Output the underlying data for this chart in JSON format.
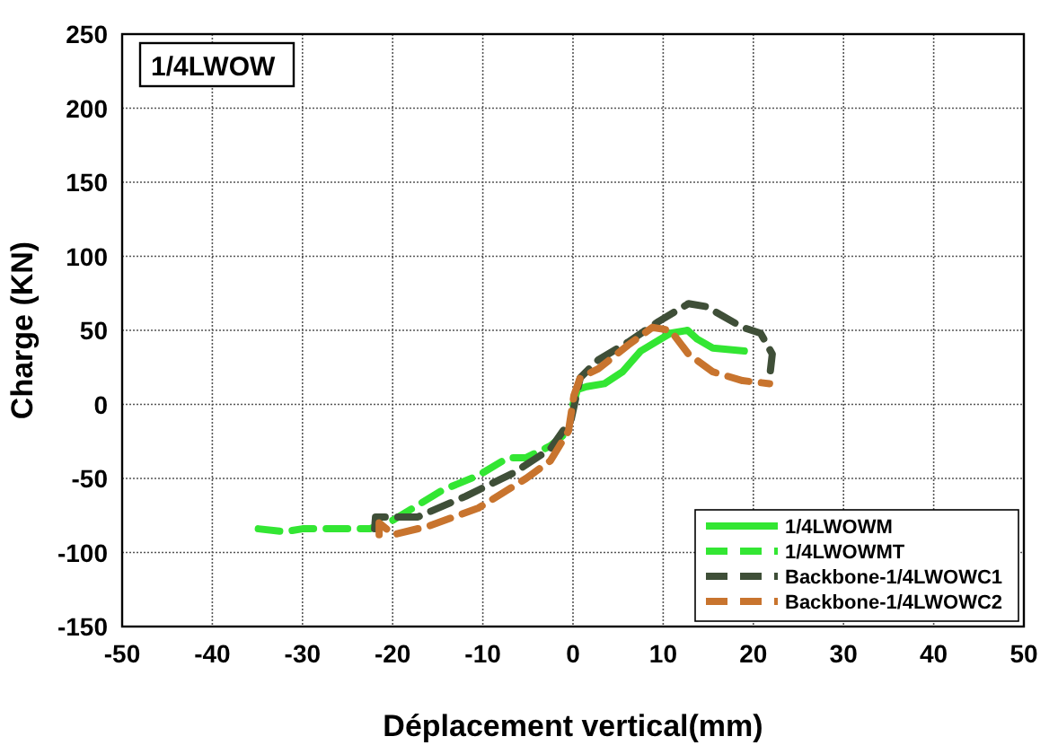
{
  "chart_data": {
    "type": "line",
    "xlabel": "Déplacement vertical(mm)",
    "ylabel": "Charge (KN)",
    "annotations": [
      "1/4LWOW"
    ],
    "xlim": [
      -50,
      50
    ],
    "xticks": [
      -50,
      -40,
      -30,
      -20,
      -10,
      0,
      10,
      20,
      30,
      40,
      50
    ],
    "ylim": [
      -150,
      250
    ],
    "yticks": [
      -150,
      -100,
      -50,
      0,
      50,
      100,
      150,
      200,
      250
    ],
    "grid": true,
    "legend": "bottom right",
    "series": [
      {
        "name": "1/4LWOWM",
        "color": "#33e633",
        "line_style": "solid",
        "x": [
          0,
          0.5,
          1.5,
          3.5,
          5.5,
          7.5,
          10.8,
          12.7,
          13.8,
          15.5,
          19
        ],
        "values": [
          0,
          10,
          12,
          14,
          22,
          36,
          48,
          50,
          44,
          38,
          36
        ]
      },
      {
        "name": "1/4LWOWMT",
        "color": "#33e633",
        "line_style": "dashed",
        "x": [
          -34.9,
          -32,
          -30,
          -22.5,
          -19.9,
          -14.5,
          -10.5,
          -7.2,
          -5.2,
          -2.5,
          -0.5
        ],
        "values": [
          -84,
          -86,
          -84,
          -84,
          -78,
          -58,
          -48,
          -36,
          -36,
          -28,
          -18
        ]
      },
      {
        "name": "Backbone-1/4LWOWC1",
        "color": "#3f4f38",
        "line_style": "dashed",
        "x": [
          -22,
          -21.9,
          -17.2,
          -11.9,
          -6.5,
          -2.5,
          -0.2,
          0.8,
          2.8,
          6.1,
          9.5,
          12.8,
          14.8,
          18.8,
          20.8,
          22.1,
          21.8
        ],
        "values": [
          -84,
          -76,
          -76,
          -62,
          -46,
          -30,
          -10,
          18,
          30,
          42,
          56,
          68,
          66,
          52,
          48,
          34,
          18
        ]
      },
      {
        "name": "Backbone-1/4LWOWC2",
        "color": "#c8742e",
        "line_style": "dashed",
        "x": [
          -21.5,
          -21.5,
          -19.9,
          -15.9,
          -10.5,
          -5.2,
          -2.5,
          -0.5,
          0.1,
          0.8,
          2.8,
          6.1,
          8.8,
          10.8,
          12.8,
          15.5,
          18.8,
          21.8
        ],
        "values": [
          -88,
          -80,
          -88,
          -82,
          -70,
          -50,
          -38,
          -18,
          6,
          18,
          24,
          40,
          52,
          50,
          34,
          22,
          16,
          14
        ]
      }
    ]
  }
}
